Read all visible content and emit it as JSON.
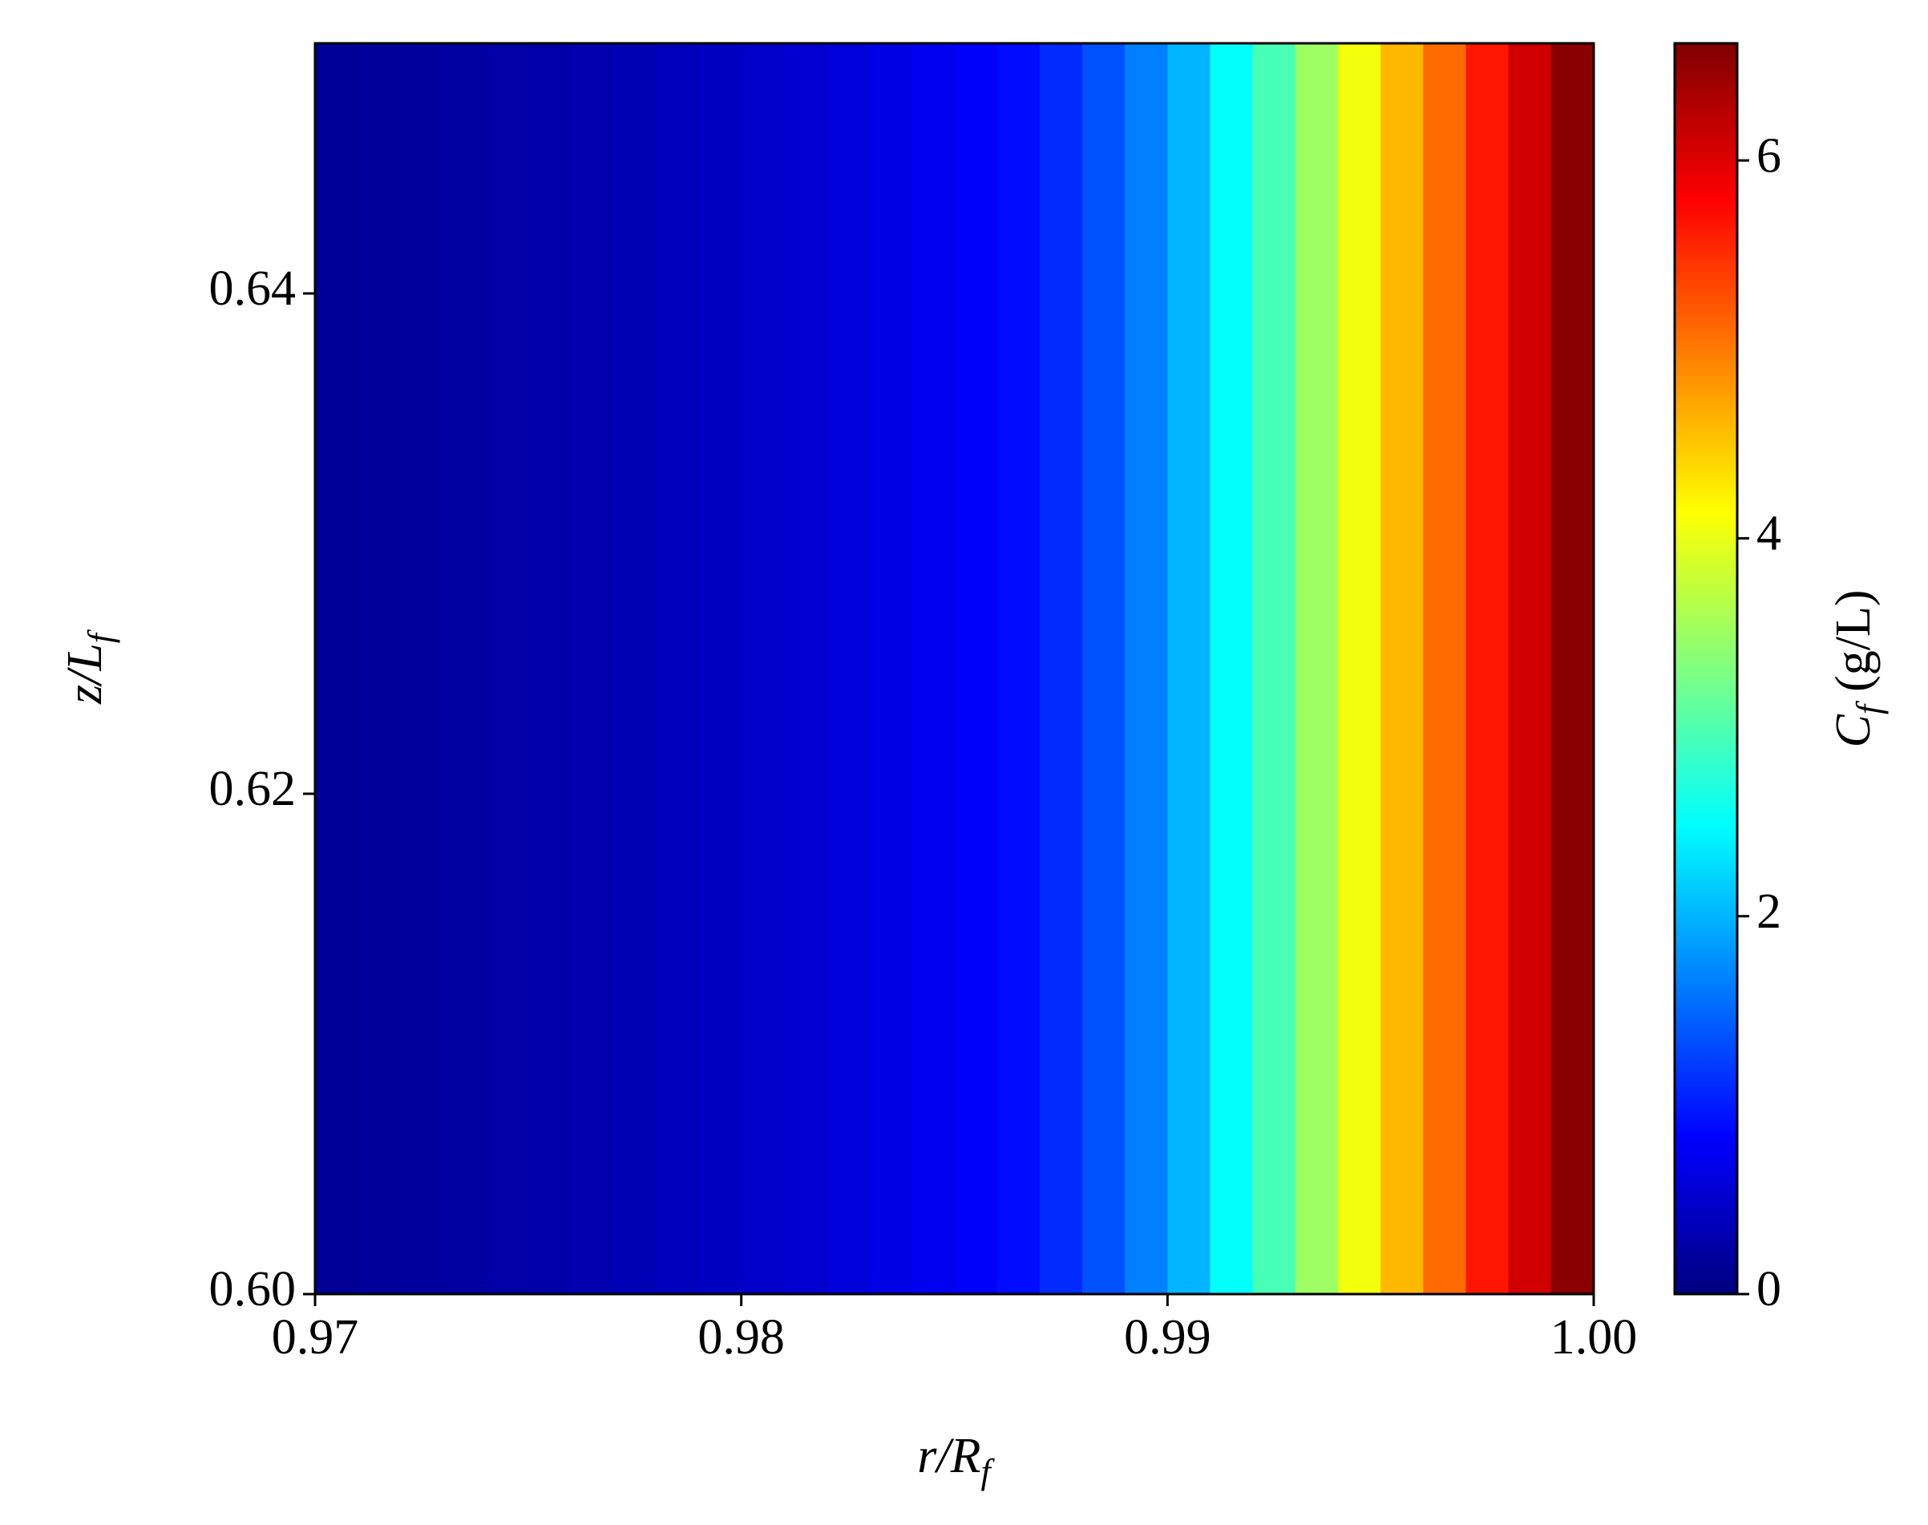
{
  "chart_data": {
    "type": "heatmap",
    "x_label": "r/R",
    "x_label_sub": "f",
    "y_label": "z/L",
    "y_label_sub": "f",
    "colorbar_label": "C",
    "colorbar_label_sub": "f",
    "colorbar_label_unit": "(g/L)",
    "colormap": "jet",
    "x": [
      0.9705,
      0.9715,
      0.9725,
      0.9735,
      0.9745,
      0.9755,
      0.9765,
      0.9775,
      0.9785,
      0.9795,
      0.9805,
      0.9815,
      0.9825,
      0.9835,
      0.9845,
      0.9855,
      0.9865,
      0.9875,
      0.9885,
      0.9895,
      0.9905,
      0.9915,
      0.9925,
      0.9935,
      0.9945,
      0.9955,
      0.9965,
      0.9975,
      0.9985,
      0.9995
    ],
    "values": [
      0.15,
      0.17,
      0.2,
      0.22,
      0.25,
      0.28,
      0.31,
      0.35,
      0.39,
      0.43,
      0.48,
      0.53,
      0.59,
      0.66,
      0.73,
      0.8,
      0.9,
      1.1,
      1.35,
      1.65,
      2.0,
      2.5,
      2.95,
      3.5,
      4.05,
      4.6,
      5.1,
      5.65,
      6.1,
      6.55
    ],
    "xlim": [
      0.97,
      1.0
    ],
    "xticks": [
      0.97,
      0.98,
      0.99,
      {
        "value": 1.0,
        "label": "1.00"
      }
    ],
    "ylim": [
      0.6,
      0.65
    ],
    "yticks": [
      {
        "value": 0.6,
        "label": "0.60"
      },
      0.62,
      0.64
    ],
    "clim": [
      0,
      6.62
    ],
    "cticks": [
      0,
      2,
      4,
      6
    ]
  }
}
